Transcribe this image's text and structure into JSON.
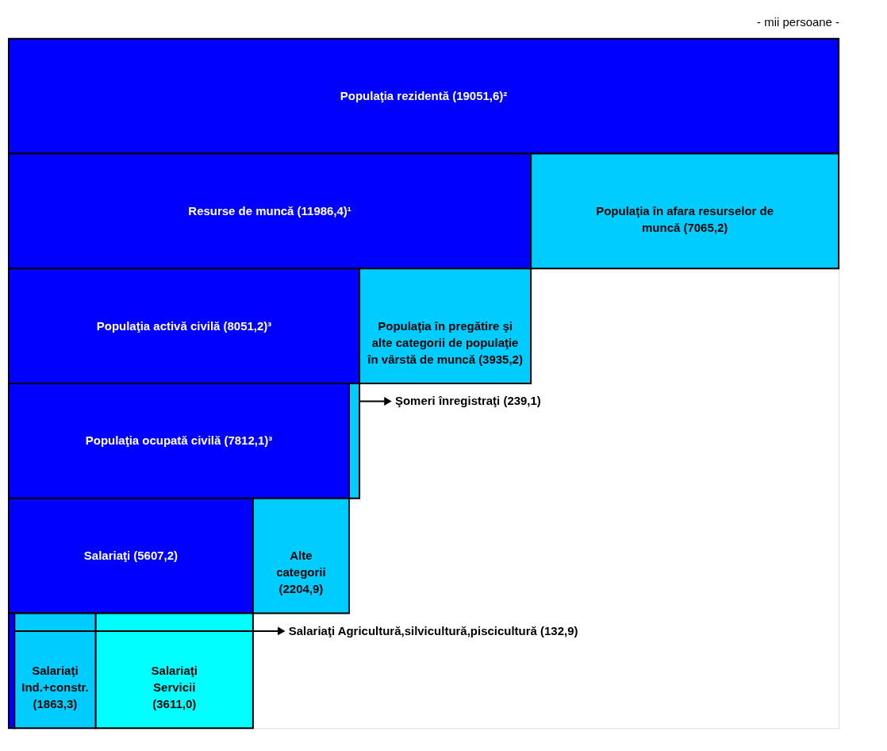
{
  "chart_data": {
    "type": "bar",
    "orientation": "horizontal",
    "stacked": true,
    "categories": [
      null,
      null,
      null,
      null,
      null,
      null
    ],
    "annotations": [
      "- mii persoane -"
    ],
    "series": [
      {
        "color": "#0000ff",
        "values": [
          19051.6,
          11986.4,
          8051.2,
          7812.1,
          5607.2,
          132.9
        ],
        "value_labels": [
          "Populaţia rezidentă (19051,6)²",
          "Resurse de muncă (11986,4)¹",
          "Populaţia activă civilă (8051,2)³",
          "Populaţia ocupată civilă (7812,1)³",
          "Salariaţi (5607,2)",
          "Salariaţi Agricultură,silvicultură,piscicultură (132,9)"
        ]
      },
      {
        "color": "#00ccff",
        "values": [
          null,
          7065.2,
          3935.2,
          239.1,
          2204.9,
          1863.3
        ],
        "value_labels": [
          null,
          "Populaţia în afara resurselor de\nmuncă (7065,2)",
          "Populaţia în pregătire şi\nalte categorii de populaţie\nîn vârstă de muncă (3935,2)",
          "Şomeri înregistraţi  (239,1)",
          "Alte\ncategorii\n(2204,9)",
          "Salariaţi\nInd.+constr.\n(1863,3)"
        ]
      },
      {
        "color": "#00ffff",
        "values": [
          null,
          null,
          null,
          null,
          null,
          3611.0
        ],
        "value_labels": [
          null,
          null,
          null,
          null,
          null,
          "Salariaţi\nServicii\n(3611,0)"
        ]
      }
    ]
  }
}
